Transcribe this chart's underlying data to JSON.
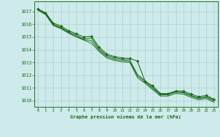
{
  "title": "Graphe pression niveau de la mer (hPa)",
  "bg_color": "#ceeaea",
  "grid_color": "#a8d0d0",
  "line_color": "#1a6b1a",
  "xlim": [
    -0.5,
    23.5
  ],
  "ylim": [
    1009.5,
    1017.8
  ],
  "yticks": [
    1010,
    1011,
    1012,
    1013,
    1014,
    1015,
    1016,
    1017
  ],
  "xticks": [
    0,
    1,
    2,
    3,
    4,
    5,
    6,
    7,
    8,
    9,
    10,
    11,
    12,
    13,
    14,
    15,
    16,
    17,
    18,
    19,
    20,
    21,
    22,
    23
  ],
  "series": [
    [
      1017.2,
      1016.9,
      1016.1,
      1015.85,
      1015.5,
      1015.25,
      1015.0,
      1015.05,
      1014.2,
      1013.65,
      1013.45,
      1013.35,
      1013.3,
      1013.1,
      1011.5,
      1011.15,
      1010.55,
      1010.55,
      1010.75,
      1010.75,
      1010.5,
      1010.3,
      1010.4,
      1010.1
    ],
    [
      1017.2,
      1016.85,
      1016.0,
      1015.75,
      1015.4,
      1015.15,
      1014.85,
      1014.9,
      1014.05,
      1013.55,
      1013.35,
      1013.25,
      1013.2,
      1012.05,
      1011.55,
      1011.05,
      1010.5,
      1010.5,
      1010.7,
      1010.65,
      1010.4,
      1010.2,
      1010.3,
      1010.05
    ],
    [
      1017.15,
      1016.8,
      1015.95,
      1015.7,
      1015.35,
      1015.05,
      1014.8,
      1014.7,
      1013.95,
      1013.45,
      1013.25,
      1013.15,
      1013.1,
      1011.95,
      1011.45,
      1010.95,
      1010.45,
      1010.45,
      1010.65,
      1010.6,
      1010.35,
      1010.15,
      1010.25,
      1009.95
    ],
    [
      1017.1,
      1016.75,
      1015.9,
      1015.65,
      1015.3,
      1015.0,
      1014.75,
      1014.5,
      1013.85,
      1013.35,
      1013.15,
      1013.05,
      1013.0,
      1011.8,
      1011.35,
      1010.85,
      1010.35,
      1010.35,
      1010.55,
      1010.5,
      1010.25,
      1010.05,
      1010.15,
      1009.85
    ]
  ]
}
